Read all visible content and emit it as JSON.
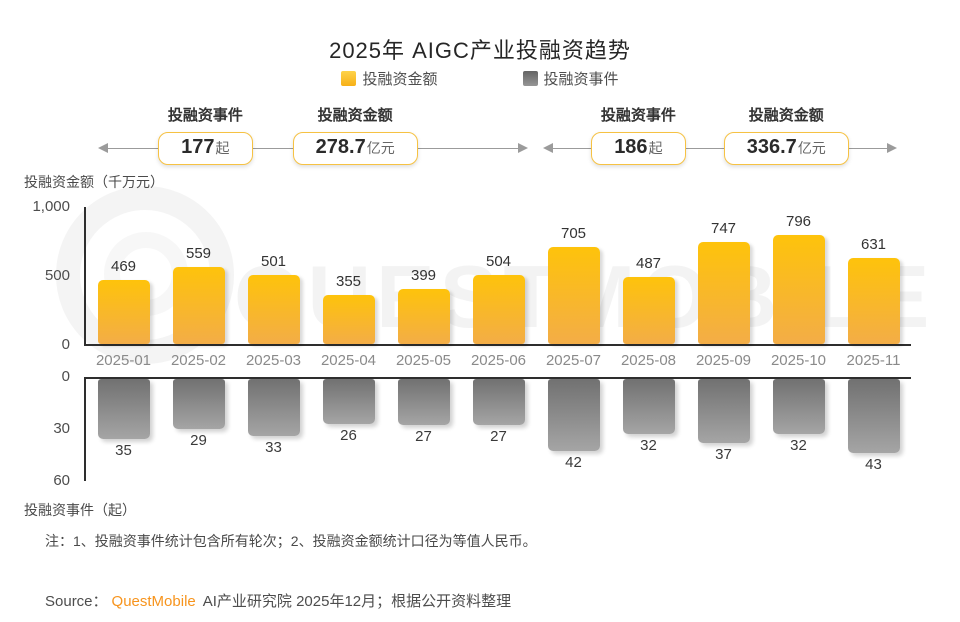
{
  "title": "2025年 AIGC产业投融资趋势",
  "legend": {
    "amount": {
      "label": "投融资金额",
      "color": "#FBB11B"
    },
    "events": {
      "label": "投融资事件",
      "color": "#7D7D7D"
    }
  },
  "summary_left": {
    "events_label": "投融资事件",
    "events_value": "177",
    "events_unit": "起",
    "amount_label": "投融资金额",
    "amount_value": "278.7",
    "amount_unit": "亿元"
  },
  "summary_right": {
    "events_label": "投融资事件",
    "events_value": "186",
    "events_unit": "起",
    "amount_label": "投融资金额",
    "amount_value": "336.7",
    "amount_unit": "亿元"
  },
  "top_axis_label": "投融资金额（千万元）",
  "bottom_axis_label": "投融资事件（起）",
  "note": "注：1、投融资事件统计包含所有轮次；2、投融资金额统计口径为等值人民币。",
  "source": {
    "prefix": "Source：",
    "brand": "QuestMobile",
    "rest": "AI产业研究院 2025年12月；根据公开资料整理"
  },
  "watermark": "QUESTMOBILE",
  "chart_data": {
    "type": "bar",
    "title": "2025年 AIGC产业投融资趋势",
    "categories": [
      "2025-01",
      "2025-02",
      "2025-03",
      "2025-04",
      "2025-05",
      "2025-06",
      "2025-07",
      "2025-08",
      "2025-09",
      "2025-10",
      "2025-11"
    ],
    "series": [
      {
        "name": "投融资金额",
        "unit": "千万元",
        "values": [
          469,
          559,
          501,
          355,
          399,
          504,
          705,
          487,
          747,
          796,
          631
        ],
        "ylim": [
          0,
          1000
        ],
        "yticks": [
          "0",
          "500",
          "1,000"
        ],
        "direction": "up",
        "color_top": "#FEC30B",
        "color_bottom": "#F3AD47"
      },
      {
        "name": "投融资事件",
        "unit": "起",
        "values": [
          35,
          29,
          33,
          26,
          27,
          27,
          42,
          32,
          37,
          32,
          43
        ],
        "ylim": [
          0,
          60
        ],
        "yticks": [
          "0",
          "30",
          "60"
        ],
        "direction": "down",
        "color_top": "#717171",
        "color_bottom": "#A5A5A5"
      }
    ],
    "legend_position": "top",
    "grid": false
  }
}
